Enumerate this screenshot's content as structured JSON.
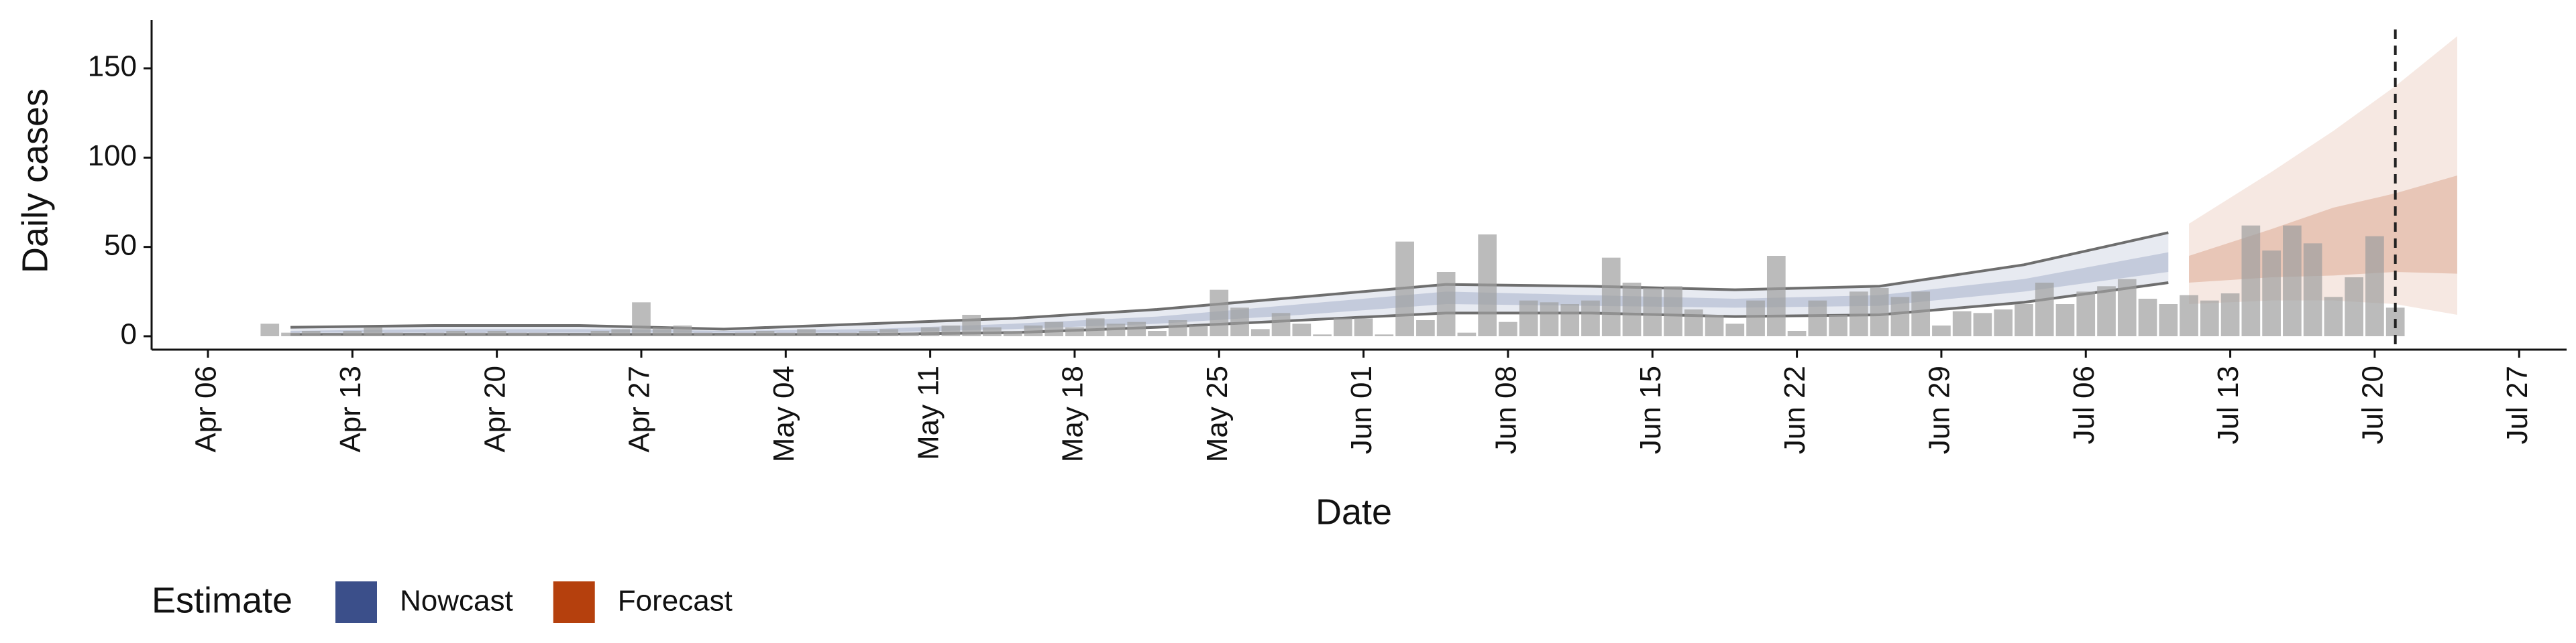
{
  "chart_data": {
    "type": "bar",
    "xlabel": "Date",
    "ylabel": "Daily cases",
    "legend_title": "Estimate",
    "xlim": [
      -2.73,
      114.3
    ],
    "ylim": [
      -7.5,
      177
    ],
    "yticks": [
      0,
      50,
      100,
      150
    ],
    "xticks": [
      {
        "value": 0,
        "label": "Apr 06"
      },
      {
        "value": 7,
        "label": "Apr 13"
      },
      {
        "value": 14,
        "label": "Apr 20"
      },
      {
        "value": 21,
        "label": "Apr 27"
      },
      {
        "value": 28,
        "label": "May 04"
      },
      {
        "value": 35,
        "label": "May 11"
      },
      {
        "value": 42,
        "label": "May 18"
      },
      {
        "value": 49,
        "label": "May 25"
      },
      {
        "value": 56,
        "label": "Jun 01"
      },
      {
        "value": 63,
        "label": "Jun 08"
      },
      {
        "value": 70,
        "label": "Jun 15"
      },
      {
        "value": 77,
        "label": "Jun 22"
      },
      {
        "value": 84,
        "label": "Jun 29"
      },
      {
        "value": 91,
        "label": "Jul 06"
      },
      {
        "value": 98,
        "label": "Jul 13"
      },
      {
        "value": 105,
        "label": "Jul 20"
      },
      {
        "value": 112,
        "label": "Jul 27"
      }
    ],
    "vline": 106,
    "series": [
      {
        "type": "bar",
        "color": "#9e9e9e",
        "x": [
          3,
          4,
          5,
          6,
          7,
          8,
          9,
          10,
          11,
          12,
          13,
          14,
          15,
          16,
          17,
          18,
          19,
          20,
          21,
          22,
          23,
          24,
          25,
          26,
          27,
          28,
          29,
          30,
          31,
          32,
          33,
          34,
          35,
          36,
          37,
          38,
          39,
          40,
          41,
          42,
          43,
          44,
          45,
          46,
          47,
          48,
          49,
          50,
          51,
          52,
          53,
          54,
          55,
          56,
          57,
          58,
          59,
          60,
          61,
          62,
          63,
          64,
          65,
          66,
          67,
          68,
          69,
          70,
          71,
          72,
          73,
          74,
          75,
          76,
          77,
          78,
          79,
          80,
          81,
          82,
          83,
          84,
          85,
          86,
          87,
          88,
          89,
          90,
          91,
          92,
          93,
          94,
          95,
          96,
          97,
          98,
          99,
          100,
          101,
          102,
          103,
          104,
          105,
          106
        ],
        "values": [
          7,
          2,
          3,
          1,
          3,
          5,
          2,
          1,
          2,
          3,
          2,
          3,
          2,
          2,
          1,
          1,
          3,
          4,
          19,
          5,
          6,
          2,
          1,
          2,
          3,
          2,
          4,
          1,
          2,
          3,
          4,
          2,
          5,
          6,
          12,
          5,
          3,
          6,
          8,
          5,
          10,
          7,
          8,
          3,
          9,
          6,
          26,
          16,
          4,
          13,
          7,
          1,
          10,
          10,
          1,
          53,
          9,
          36,
          2,
          57,
          8,
          20,
          19,
          18,
          20,
          44,
          30,
          27,
          28,
          15,
          12,
          7,
          20,
          45,
          3,
          20,
          12,
          25,
          27,
          22,
          25,
          6,
          14,
          13,
          15,
          18,
          30,
          18,
          25,
          28,
          32,
          21,
          18,
          23,
          20,
          24,
          62,
          48,
          62,
          52,
          22,
          33,
          56,
          16
        ]
      },
      {
        "type": "band",
        "name": "Nowcast",
        "color": "#3b4f8a",
        "outline": "#6e6e6e",
        "x": [
          4,
          11,
          18,
          25,
          32,
          39,
          46,
          53,
          60,
          67,
          74,
          81,
          88,
          95
        ],
        "upper90": [
          5,
          6,
          6,
          4,
          7,
          10,
          15,
          22,
          29,
          28,
          26,
          28,
          40,
          58
        ],
        "lower90": [
          1,
          1,
          1,
          1,
          1,
          2,
          5,
          9,
          13,
          13,
          11,
          12,
          19,
          30
        ],
        "upper50": [
          3,
          4,
          4,
          3,
          4,
          7,
          11,
          18,
          25,
          23,
          21,
          23,
          32,
          47
        ],
        "lower50": [
          2,
          2,
          2,
          2,
          2,
          4,
          7,
          12,
          18,
          17,
          16,
          17,
          25,
          36
        ]
      },
      {
        "type": "band",
        "name": "Forecast",
        "color": "#b5400d",
        "x": [
          96,
          100,
          103,
          106,
          109
        ],
        "upper90": [
          63,
          92,
          115,
          140,
          168
        ],
        "lower90": [
          18,
          20,
          20,
          18,
          12
        ],
        "upper50": [
          45,
          60,
          72,
          80,
          90
        ],
        "lower50": [
          30,
          33,
          34,
          36,
          35
        ]
      }
    ]
  }
}
